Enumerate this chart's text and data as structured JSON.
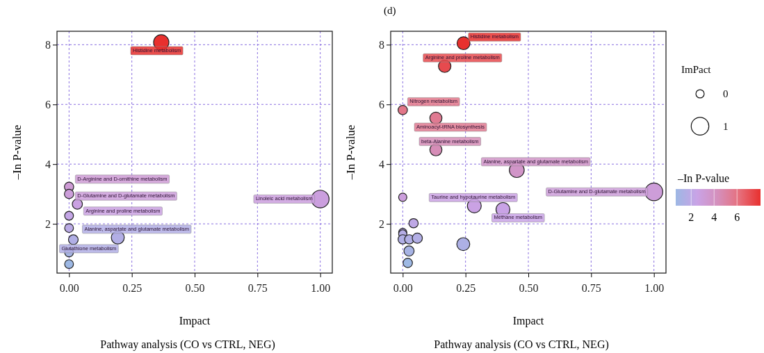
{
  "chart_data": [
    {
      "type": "bubble",
      "title": "Pathway analysis (CO vs CTRL, NEG)",
      "xlabel": "Impact",
      "ylabel": "–In P-value",
      "x": [
        0.367,
        0,
        0,
        0.033,
        0,
        0,
        0.017,
        0,
        0,
        0.194,
        1.0
      ],
      "values": [
        8.08,
        3.24,
        3.0,
        2.66,
        2.27,
        1.86,
        1.47,
        1.04,
        0.65,
        1.54,
        2.83
      ],
      "sizes": [
        0.75,
        0.28,
        0.28,
        0.33,
        0.25,
        0.25,
        0.3,
        0.25,
        0.25,
        0.54,
        1.0
      ],
      "xlim": [
        -0.048,
        1.048
      ],
      "ylim": [
        0.35,
        8.45
      ],
      "xticks": [
        {
          "value": 0,
          "label": "0.00"
        },
        {
          "value": 0.25,
          "label": "0.25"
        },
        {
          "value": 0.5,
          "label": "0.50"
        },
        {
          "value": 0.75,
          "label": "0.75"
        },
        {
          "value": 1,
          "label": "1.00"
        }
      ],
      "yticks": [
        2,
        4,
        6,
        8
      ],
      "grid": true,
      "marker": "circle",
      "annotations": [
        {
          "text": "Histidine metabolism",
          "x": 0.367,
          "y": 8.08
        },
        {
          "text": "D-Arginine and D-ornithine metabolism",
          "x": 0,
          "y": 3.24
        },
        {
          "text": "D-Glutamine and D-glutamate metabolism",
          "x": 0,
          "y": 3.0
        },
        {
          "text": "Arginine and proline metabolism",
          "x": 0.033,
          "y": 2.66
        },
        {
          "text": "Alanine, aspartate and glutamate metabolism",
          "x": 0.194,
          "y": 1.54
        },
        {
          "text": "Glutathione metabolism",
          "x": 0.017,
          "y": 1.47
        },
        {
          "text": "Linoleic acid metabolism",
          "x": 1.0,
          "y": 2.83
        }
      ]
    },
    {
      "type": "bubble",
      "title": "Pathway analysis (CO vs CTRL, NEG)",
      "xlabel": "Impact",
      "ylabel": "–In P-value",
      "x": [
        0.242,
        0.167,
        0,
        0.132,
        0.132,
        0.454,
        1.0,
        0,
        0.285,
        0.399,
        0.043,
        0,
        0,
        0,
        0.026,
        0.058,
        0.241,
        0.025,
        0.02
      ],
      "values": [
        8.05,
        7.28,
        5.81,
        5.54,
        4.48,
        3.8,
        3.07,
        2.89,
        2.6,
        2.48,
        2.02,
        1.71,
        1.66,
        1.48,
        1.48,
        1.52,
        1.32,
        1.09,
        0.69
      ],
      "sizes": [
        0.54,
        0.5,
        0.28,
        0.47,
        0.47,
        0.71,
        1.0,
        0.22,
        0.62,
        0.62,
        0.28,
        0.22,
        0.22,
        0.28,
        0.28,
        0.33,
        0.54,
        0.33,
        0.28
      ],
      "cvalues": [
        8.05,
        7.28,
        5.81,
        5.54,
        4.48,
        3.8,
        3.07,
        2.89,
        2.6,
        2.48,
        2.02,
        1.71,
        1.66,
        1.48,
        1.48,
        1.52,
        1.32,
        1.09,
        0.69
      ],
      "size_legend": [
        {
          "value": 0.22,
          "label": "0"
        },
        {
          "value": 1,
          "label": "1"
        }
      ],
      "legend_title": "ImPact",
      "clabel": "–In P-value",
      "clim": [
        0.65,
        8.05
      ],
      "cticks": [
        2,
        4,
        6
      ],
      "xlim": [
        -0.048,
        1.048
      ],
      "ylim": [
        0.35,
        8.45
      ],
      "xticks": [
        {
          "value": 0,
          "label": "0.00"
        },
        {
          "value": 0.25,
          "label": "0.25"
        },
        {
          "value": 0.5,
          "label": "0.50"
        },
        {
          "value": 0.75,
          "label": "0.75"
        },
        {
          "value": 1,
          "label": "1.00"
        }
      ],
      "yticks": [
        2,
        4,
        6,
        8
      ],
      "grid": true,
      "marker": "circle",
      "annotations": [
        "(d)",
        {
          "text": "Histidine metabolism",
          "x": 0.242,
          "y": 8.05
        },
        {
          "text": "Arginine and proline metabolism",
          "x": 0.167,
          "y": 7.28
        },
        {
          "text": "Nitrogen metabolism",
          "x": 0,
          "y": 5.81
        },
        {
          "text": "Aminoacyl-tRNA biosynthesis",
          "x": 0.132,
          "y": 5.54
        },
        {
          "text": "beta-Alanine metabolism",
          "x": 0.132,
          "y": 4.48
        },
        {
          "text": "Alanine, aspartate and glutamate metabolism",
          "x": 0.454,
          "y": 3.8
        },
        {
          "text": "D-Glutamine and D-glutamate metabolism",
          "x": 1.0,
          "y": 3.07
        },
        {
          "text": "Taurine and hypotaurine metabolism",
          "x": 0.285,
          "y": 2.6
        },
        {
          "text": "Methane metabolism",
          "x": 0.399,
          "y": 2.48
        }
      ]
    }
  ]
}
